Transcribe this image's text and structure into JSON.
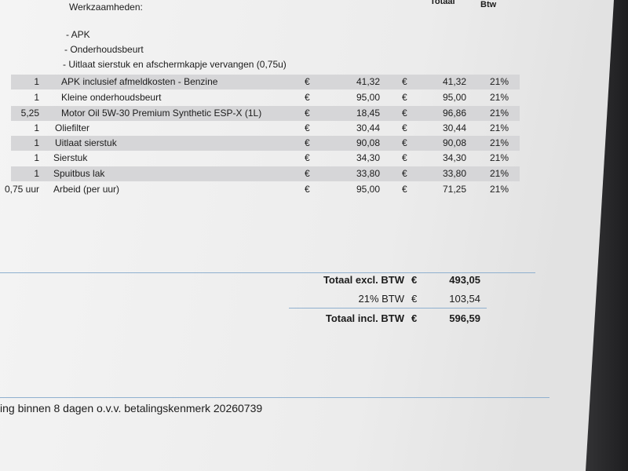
{
  "header": {
    "title": "Werkzaamheden:",
    "columns": [
      "Totaal",
      "Btw"
    ]
  },
  "work_items": [
    "- APK",
    "- Onderhoudsbeurt",
    "- Uitlaat sierstuk en afschermkapje vervangen (0,75u)"
  ],
  "table": {
    "rows": [
      [
        "1",
        "APK inclusief afmeldkosten - Benzine",
        "€",
        "41,32",
        "€",
        "41,32",
        "21%"
      ],
      [
        "1",
        "Kleine onderhoudsbeurt",
        "€",
        "95,00",
        "€",
        "95,00",
        "21%"
      ],
      [
        "5,25",
        "Motor Oil 5W-30 Premium Synthetic ESP-X (1L)",
        "€",
        "18,45",
        "€",
        "96,86",
        "21%"
      ],
      [
        "1",
        "Oliefilter",
        "€",
        "30,44",
        "€",
        "30,44",
        "21%"
      ],
      [
        "1",
        "Uitlaat sierstuk",
        "€",
        "90,08",
        "€",
        "90,08",
        "21%"
      ],
      [
        "1",
        "Sierstuk",
        "€",
        "34,30",
        "€",
        "34,30",
        "21%"
      ],
      [
        "1",
        "Spuitbus lak",
        "€",
        "33,80",
        "€",
        "33,80",
        "21%"
      ],
      [
        "0,75 uur",
        "Arbeid (per uur)",
        "€",
        "95,00",
        "€",
        "71,25",
        "21%"
      ]
    ]
  },
  "totals": [
    [
      "Totaal excl. BTW",
      "€",
      "493,05"
    ],
    [
      "21% BTW",
      "€",
      "103,54"
    ],
    [
      "Totaal incl. BTW",
      "€",
      "596,59"
    ]
  ],
  "footer": "ing binnen 8 dagen o.v.v. betalingskenmerk 20260739"
}
